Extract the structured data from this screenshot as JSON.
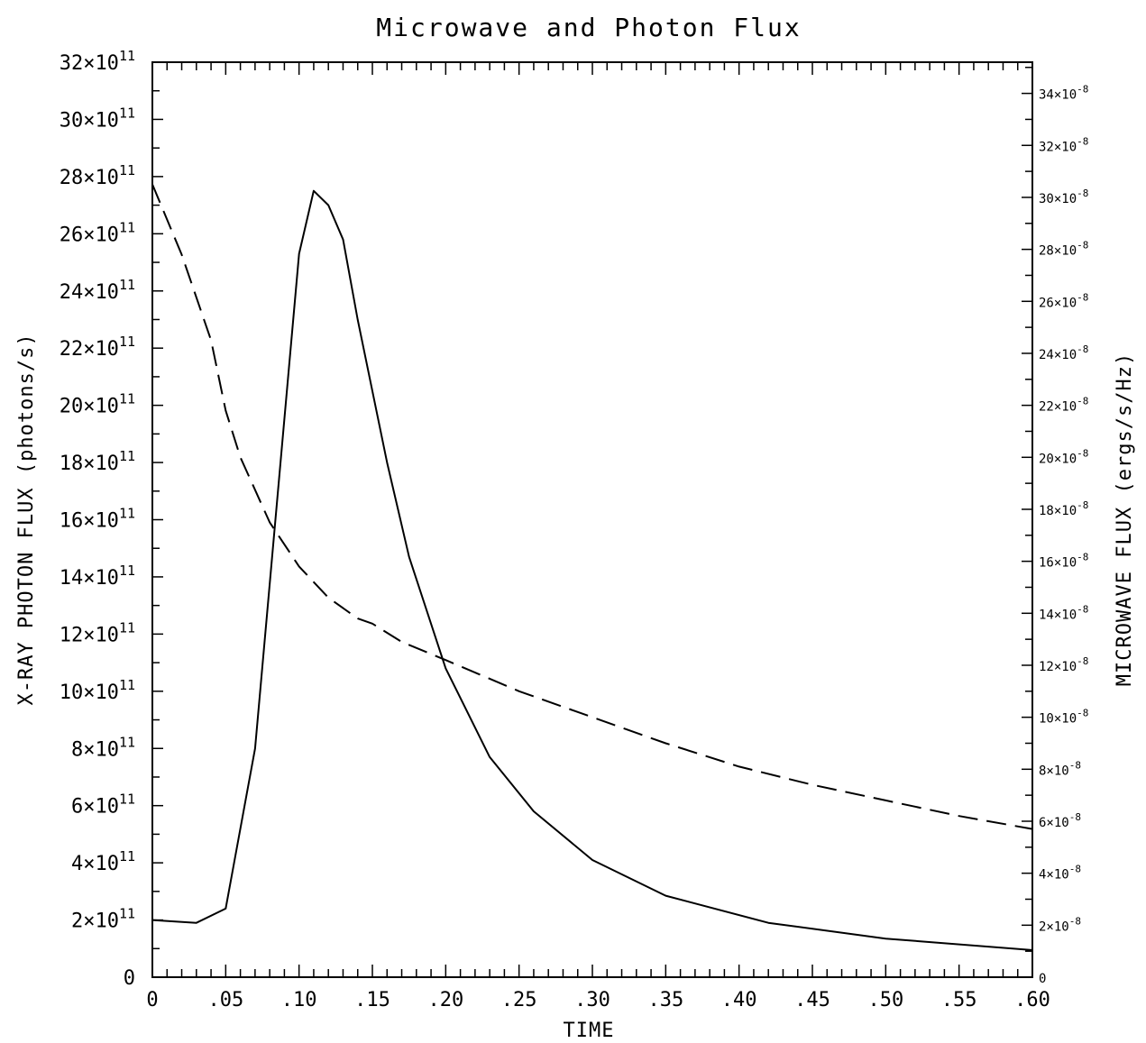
{
  "chart_data": {
    "type": "line",
    "title": "Microwave and Photon Flux",
    "xlabel": "TIME",
    "ylabel_left": "X-RAY PHOTON FLUX (photons/s)",
    "ylabel_right": "MICROWAVE FLUX (ergs/s/Hz)",
    "xlim": [
      0,
      0.6
    ],
    "ylim_left": [
      0,
      32
    ],
    "ylim_right": [
      0,
      35.2
    ],
    "x_ticks": [
      "0",
      ".05",
      ".10",
      ".15",
      ".20",
      ".25",
      ".30",
      ".35",
      ".40",
      ".45",
      ".50",
      ".55",
      ".60"
    ],
    "left_ticks": [
      "0",
      "2×10^11",
      "4×10^11",
      "6×10^11",
      "8×10^11",
      "10×10^11",
      "12×10^11",
      "14×10^11",
      "16×10^11",
      "18×10^11",
      "20×10^11",
      "22×10^11",
      "24×10^11",
      "26×10^11",
      "28×10^11",
      "30×10^11",
      "32×10^11"
    ],
    "right_ticks": [
      "0",
      "2×10^-8",
      "4×10^-8",
      "6×10^-8",
      "8×10^-8",
      "10×10^-8",
      "12×10^-8",
      "14×10^-8",
      "16×10^-8",
      "18×10^-8",
      "20×10^-8",
      "22×10^-8",
      "24×10^-8",
      "26×10^-8",
      "28×10^-8",
      "30×10^-8",
      "32×10^-8",
      "34×10^-8"
    ],
    "grid": false,
    "series": [
      {
        "axis": "left",
        "style": "solid",
        "x": [
          0,
          0.03,
          0.05,
          0.07,
          0.1,
          0.11,
          0.12,
          0.13,
          0.14,
          0.15,
          0.16,
          0.175,
          0.2,
          0.23,
          0.26,
          0.3,
          0.35,
          0.42,
          0.5,
          0.6
        ],
        "y": [
          2.0,
          1.9,
          2.4,
          8.0,
          25.3,
          27.5,
          27.0,
          25.8,
          23.0,
          20.5,
          18.0,
          14.7,
          10.8,
          7.7,
          5.8,
          4.1,
          2.85,
          1.9,
          1.35,
          0.95
        ]
      },
      {
        "axis": "right",
        "style": "dashed",
        "x": [
          0,
          0.02,
          0.04,
          0.05,
          0.06,
          0.08,
          0.1,
          0.12,
          0.14,
          0.15,
          0.17,
          0.2,
          0.25,
          0.3,
          0.35,
          0.4,
          0.45,
          0.5,
          0.55,
          0.6
        ],
        "y": [
          30.5,
          27.8,
          24.5,
          21.8,
          20.0,
          17.5,
          15.8,
          14.6,
          13.8,
          13.6,
          12.9,
          12.2,
          11.0,
          10.0,
          9.0,
          8.1,
          7.4,
          6.8,
          6.2,
          5.7
        ]
      }
    ]
  }
}
